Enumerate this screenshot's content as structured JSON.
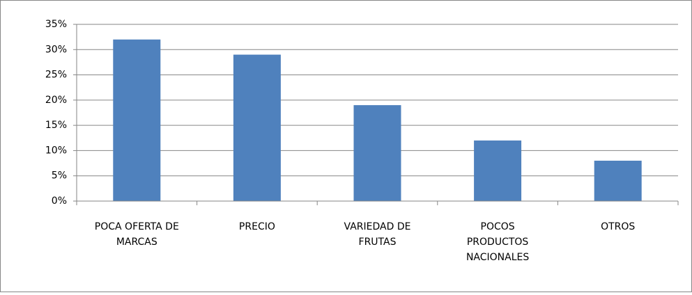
{
  "chart_data": {
    "type": "bar",
    "categories": [
      "POCA OFERTA DE MARCAS",
      "PRECIO",
      "VARIEDAD DE FRUTAS",
      "POCOS PRODUCTOS NACIONALES",
      "OTROS"
    ],
    "values": [
      32,
      29,
      19,
      12,
      8
    ],
    "color": "#4f81bd",
    "ylim": [
      0,
      35
    ],
    "yticks": [
      {
        "value": 0,
        "label": "0%"
      },
      {
        "value": 5,
        "label": "5%"
      },
      {
        "value": 10,
        "label": "10%"
      },
      {
        "value": 15,
        "label": "15%"
      },
      {
        "value": 20,
        "label": "20%"
      },
      {
        "value": 25,
        "label": "25%"
      },
      {
        "value": 30,
        "label": "30%"
      },
      {
        "value": 35,
        "label": "35%"
      }
    ],
    "grid": true
  }
}
